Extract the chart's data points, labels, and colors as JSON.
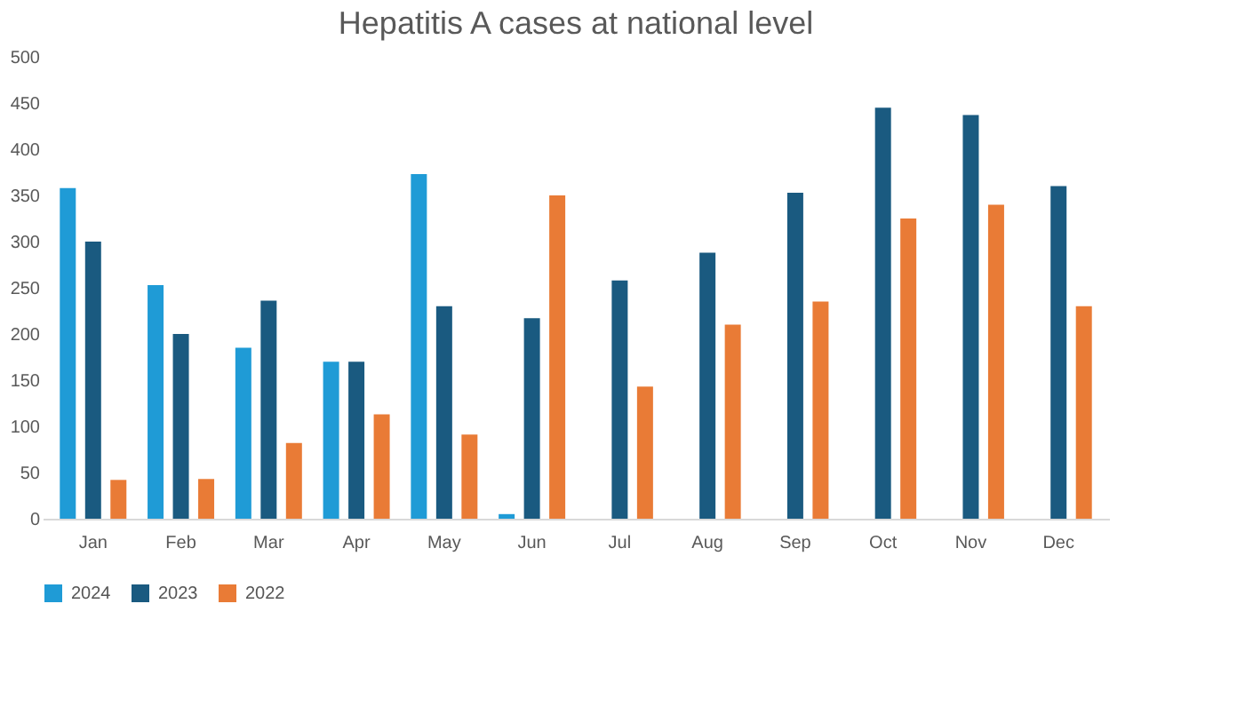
{
  "chart_data": {
    "type": "bar",
    "title": "Hepatitis A cases at national level",
    "categories": [
      "Jan",
      "Feb",
      "Mar",
      "Apr",
      "May",
      "Jun",
      "Jul",
      "Aug",
      "Sep",
      "Oct",
      "Nov",
      "Dec"
    ],
    "series": [
      {
        "name": "2024",
        "color": "#1f9bd6",
        "values": [
          358,
          253,
          185,
          170,
          373,
          5,
          null,
          null,
          null,
          null,
          null,
          null
        ]
      },
      {
        "name": "2023",
        "color": "#1a5a80",
        "values": [
          300,
          200,
          236,
          170,
          230,
          217,
          258,
          288,
          353,
          445,
          437,
          360
        ]
      },
      {
        "name": "2022",
        "color": "#e97b36",
        "values": [
          42,
          43,
          82,
          113,
          91,
          350,
          143,
          210,
          235,
          325,
          340,
          230
        ]
      }
    ],
    "ylim": [
      0,
      500
    ],
    "yticks": [
      0,
      50,
      100,
      150,
      200,
      250,
      300,
      350,
      400,
      450,
      500
    ],
    "grid": false,
    "legend": "bottom"
  }
}
